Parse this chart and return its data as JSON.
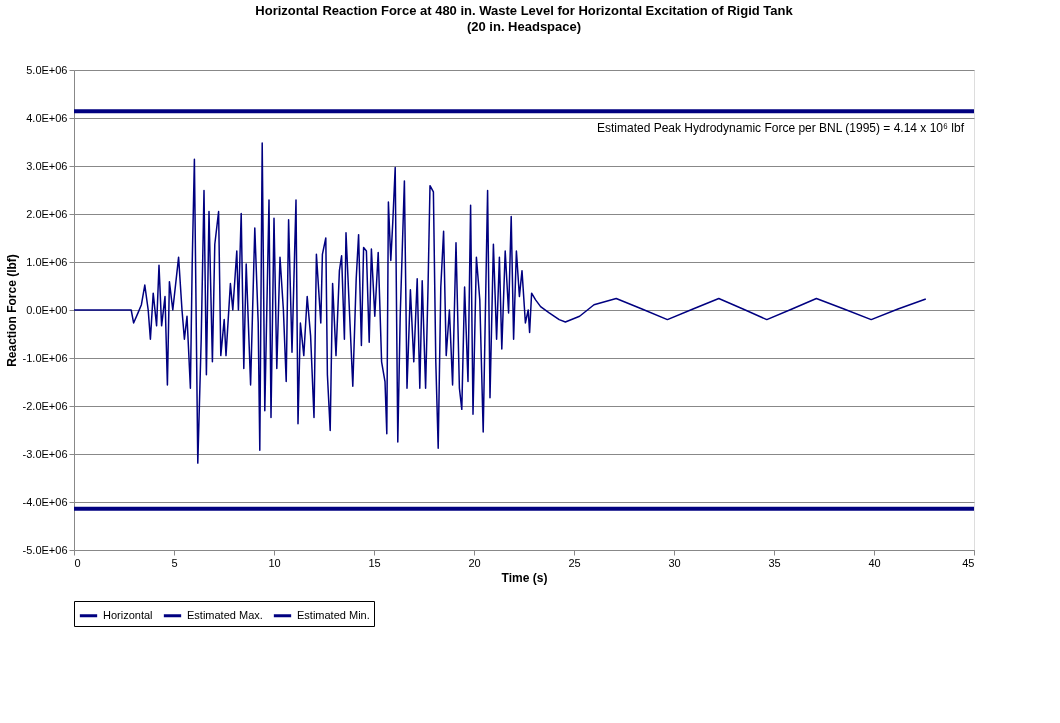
{
  "chart_data": {
    "type": "line",
    "title": "Horizontal Reaction Force at 480 in. Waste Level for Horizontal Excitation of Rigid Tank",
    "subtitle": "(20 in. Headspace)",
    "xlabel": "Time (s)",
    "ylabel": "Reaction Force (lbf)",
    "xlim": [
      0,
      45
    ],
    "xticks": [
      0,
      5,
      10,
      15,
      20,
      25,
      30,
      35,
      40,
      45
    ],
    "ylim": [
      -5000000,
      5000000
    ],
    "yticks": [
      {
        "value": -5000000,
        "label": "-5.0E+06"
      },
      {
        "value": -4000000,
        "label": "-4.0E+06"
      },
      {
        "value": -3000000,
        "label": "-3.0E+06"
      },
      {
        "value": -2000000,
        "label": "-2.0E+06"
      },
      {
        "value": -1000000,
        "label": "-1.0E+06"
      },
      {
        "value": 0,
        "label": "0.0E+00"
      },
      {
        "value": 1000000,
        "label": "1.0E+06"
      },
      {
        "value": 2000000,
        "label": "2.0E+06"
      },
      {
        "value": 3000000,
        "label": "3.0E+06"
      },
      {
        "value": 4000000,
        "label": "4.0E+06"
      },
      {
        "value": 5000000,
        "label": "5.0E+06"
      }
    ],
    "grid": "y",
    "legend": "bottom",
    "annotations": [
      "Estimated Peak Hydrodynamic Force per BNL (1995) = 4.14 x 10⁶ lbf"
    ],
    "series": [
      {
        "name": "Horizontal",
        "color": "#000080",
        "x": [
          0,
          2.86,
          2.98,
          3.2,
          3.37,
          3.54,
          3.71,
          3.82,
          3.96,
          4.13,
          4.25,
          4.38,
          4.55,
          4.67,
          4.77,
          4.94,
          5.23,
          5.4,
          5.52,
          5.65,
          5.82,
          5.91,
          6.02,
          6.19,
          6.36,
          6.5,
          6.62,
          6.75,
          6.92,
          7.04,
          7.23,
          7.34,
          7.51,
          7.6,
          7.82,
          7.94,
          8.14,
          8.22,
          8.36,
          8.49,
          8.61,
          8.83,
          9.04,
          9.21,
          9.29,
          9.41,
          9.54,
          9.75,
          9.85,
          10.0,
          10.14,
          10.3,
          10.47,
          10.61,
          10.73,
          10.9,
          11.1,
          11.2,
          11.32,
          11.49,
          11.66,
          11.83,
          12.0,
          12.12,
          12.34,
          12.42,
          12.59,
          12.67,
          12.81,
          12.93,
          13.1,
          13.27,
          13.38,
          13.52,
          13.6,
          13.77,
          13.94,
          14.11,
          14.23,
          14.37,
          14.48,
          14.62,
          14.76,
          14.87,
          15.04,
          15.21,
          15.38,
          15.55,
          15.64,
          15.72,
          15.84,
          15.94,
          16.06,
          16.19,
          16.31,
          16.52,
          16.65,
          16.82,
          16.99,
          17.16,
          17.29,
          17.41,
          17.58,
          17.7,
          17.8,
          17.97,
          18.09,
          18.21,
          18.34,
          18.48,
          18.61,
          18.77,
          18.93,
          19.1,
          19.27,
          19.39,
          19.53,
          19.7,
          19.83,
          19.95,
          20.12,
          20.29,
          20.46,
          20.68,
          20.8,
          20.97,
          21.13,
          21.27,
          21.39,
          21.56,
          21.73,
          21.86,
          21.98,
          22.12,
          22.27,
          22.4,
          22.57,
          22.71,
          22.78,
          22.88,
          23.08,
          23.33,
          23.76,
          24.26,
          24.57,
          25.28,
          26.0,
          27.11,
          28.4,
          29.67,
          30.95,
          32.24,
          33.45,
          34.64,
          35.9,
          37.12,
          38.5,
          39.86,
          41.2,
          42.59
        ],
        "values": [
          0,
          0,
          -270000,
          -60000,
          110000,
          520000,
          0,
          -610000,
          350000,
          -330000,
          930000,
          -330000,
          280000,
          -1560000,
          590000,
          0,
          1100000,
          0,
          -610000,
          -130000,
          -1630000,
          960000,
          3140000,
          -3190000,
          -610000,
          2490000,
          -1350000,
          2050000,
          -1080000,
          1370000,
          2050000,
          -950000,
          -200000,
          -950000,
          550000,
          0,
          1230000,
          0,
          2010000,
          -1220000,
          960000,
          -1560000,
          1710000,
          -270000,
          -2920000,
          3480000,
          -2100000,
          2290000,
          -2240000,
          1910000,
          -1220000,
          1100000,
          0,
          -1490000,
          1880000,
          -880000,
          2290000,
          -2370000,
          -270000,
          -950000,
          280000,
          -540000,
          -2240000,
          1160000,
          -270000,
          1160000,
          1500000,
          -1350000,
          -2510000,
          550000,
          -950000,
          820000,
          1130000,
          -610000,
          1610000,
          0,
          -1590000,
          650000,
          1570000,
          -740000,
          1300000,
          1230000,
          -670000,
          1270000,
          -130000,
          1200000,
          -1080000,
          -1490000,
          -2580000,
          2250000,
          1030000,
          1840000,
          2970000,
          -2750000,
          -130000,
          2690000,
          -1630000,
          420000,
          -1080000,
          650000,
          -1630000,
          610000,
          -1630000,
          450000,
          2590000,
          2460000,
          -1080000,
          -2880000,
          480000,
          1640000,
          -950000,
          0,
          -1560000,
          1400000,
          -1630000,
          -2070000,
          480000,
          -1490000,
          2180000,
          -2170000,
          1100000,
          210000,
          -2540000,
          2490000,
          -1830000,
          1370000,
          -610000,
          1100000,
          -810000,
          1230000,
          -60000,
          1950000,
          -610000,
          1230000,
          280000,
          820000,
          -270000,
          0,
          -470000,
          350000,
          210000,
          70000,
          -60000,
          -200000,
          -250000,
          -130000,
          110000,
          240000,
          20000,
          -200000,
          20000,
          240000,
          20000,
          -200000,
          20000,
          240000,
          20000,
          -200000,
          20000,
          230000
        ]
      },
      {
        "name": "Estimated Max.",
        "color": "#000080",
        "x": [
          0,
          45
        ],
        "values": [
          4140000,
          4140000
        ]
      },
      {
        "name": "Estimated Min.",
        "color": "#000080",
        "x": [
          0,
          45
        ],
        "values": [
          -4140000,
          -4140000
        ]
      }
    ]
  }
}
